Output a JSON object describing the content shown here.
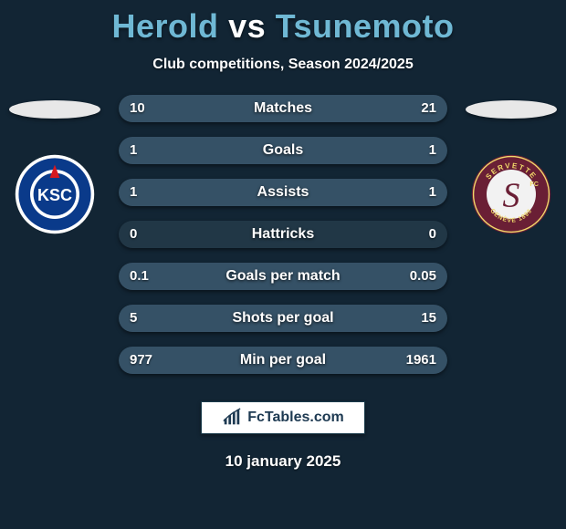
{
  "background_color": "#122534",
  "title": {
    "player1": "Herold",
    "vs": "vs",
    "player2": "Tsunemoto",
    "player_color": "#6fb8d4",
    "vs_color": "#ffffff",
    "fontsize": 36
  },
  "subtitle": {
    "text": "Club competitions, Season 2024/2025",
    "color": "#ffffff",
    "fontsize": 16
  },
  "bars": {
    "track_color": "#213746",
    "fill_color": "#355166",
    "text_color": "#ffffff",
    "label_fontsize": 16,
    "value_fontsize": 15,
    "items": [
      {
        "label": "Matches",
        "left": "10",
        "right": "21",
        "fill_left_pct": 32,
        "fill_right_pct": 68
      },
      {
        "label": "Goals",
        "left": "1",
        "right": "1",
        "fill_left_pct": 50,
        "fill_right_pct": 50
      },
      {
        "label": "Assists",
        "left": "1",
        "right": "1",
        "fill_left_pct": 50,
        "fill_right_pct": 50
      },
      {
        "label": "Hattricks",
        "left": "0",
        "right": "0",
        "fill_left_pct": 0,
        "fill_right_pct": 0
      },
      {
        "label": "Goals per match",
        "left": "0.1",
        "right": "0.05",
        "fill_left_pct": 67,
        "fill_right_pct": 33
      },
      {
        "label": "Shots per goal",
        "left": "5",
        "right": "15",
        "fill_left_pct": 25,
        "fill_right_pct": 75
      },
      {
        "label": "Min per goal",
        "left": "977",
        "right": "1961",
        "fill_left_pct": 33,
        "fill_right_pct": 67
      }
    ]
  },
  "clubs": {
    "left": {
      "name": "KSC",
      "outer_color": "#ffffff",
      "inner_color": "#0a3a8a",
      "triangle_color": "#d71920",
      "text": "KSC",
      "text_color": "#ffffff"
    },
    "right": {
      "name": "Servette FC",
      "outer_color": "#6a1f35",
      "ring_text_color": "#f0d96a",
      "ring_text_top": "SERVETTE",
      "ring_text_bottom": "GENÈVE 1890",
      "inner_fill": "#f2f2f2",
      "letter": "S",
      "letter_color": "#6a1f35"
    }
  },
  "branding": {
    "icon_name": "bar-chart-icon",
    "text": "FcTables.com",
    "bg": "#ffffff",
    "text_color": "#1e3a52"
  },
  "date": {
    "text": "10 january 2025",
    "color": "#ffffff",
    "fontsize": 17
  }
}
